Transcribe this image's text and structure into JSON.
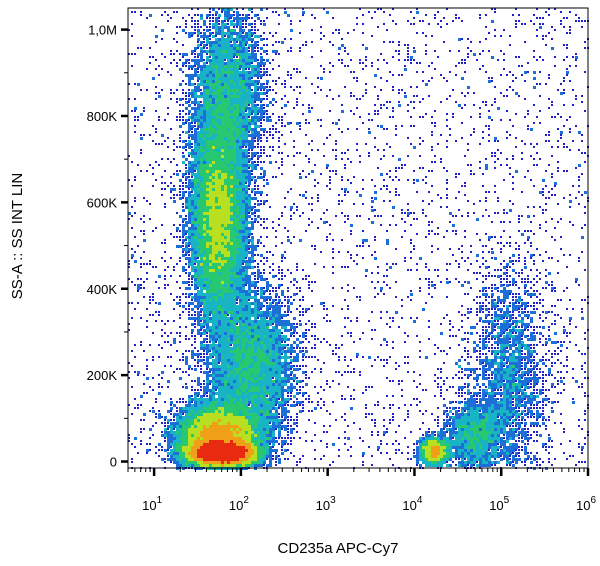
{
  "chart_data": {
    "type": "heatmap",
    "subtype": "flow-cytometry-density-dot-plot",
    "title": "",
    "xlabel": "CD235a APC-Cy7",
    "ylabel": "SS-A :: SS INT LIN",
    "x_scale": "log",
    "y_scale": "linear",
    "xlim": [
      5,
      1000000
    ],
    "ylim": [
      -15000,
      1050000
    ],
    "x_ticks": [
      {
        "value": 10,
        "base": "10",
        "exp": "1"
      },
      {
        "value": 100,
        "base": "10",
        "exp": "2"
      },
      {
        "value": 1000,
        "base": "10",
        "exp": "3"
      },
      {
        "value": 10000,
        "base": "10",
        "exp": "4"
      },
      {
        "value": 100000,
        "base": "10",
        "exp": "5"
      },
      {
        "value": 1000000,
        "base": "10",
        "exp": "6"
      }
    ],
    "y_ticks": [
      {
        "value": 0,
        "label": "0"
      },
      {
        "value": 200000,
        "label": "200K"
      },
      {
        "value": 400000,
        "label": "400K"
      },
      {
        "value": 600000,
        "label": "600K"
      },
      {
        "value": 800000,
        "label": "800K"
      },
      {
        "value": 1000000,
        "label": "1,0M"
      }
    ],
    "grid": false,
    "legend": "none",
    "color_scale": [
      "#1f20c8",
      "#1d6fd8",
      "#18b4c6",
      "#28c870",
      "#b8e020",
      "#f0a018",
      "#e82a10"
    ],
    "populations": [
      {
        "x_center": 60,
        "x_spread_decades": 0.18,
        "y_center": 20000,
        "y_spread": 14000,
        "weight": 0.3
      },
      {
        "x_center": 55,
        "x_spread_decades": 0.22,
        "y_center": 60000,
        "y_spread": 35000,
        "weight": 0.2
      },
      {
        "x_center": 55,
        "x_spread_decades": 0.16,
        "y_center": 560000,
        "y_spread": 120000,
        "weight": 0.22
      },
      {
        "x_center": 70,
        "x_spread_decades": 0.2,
        "y_center": 850000,
        "y_spread": 100000,
        "weight": 0.08
      },
      {
        "x_center": 130,
        "x_spread_decades": 0.25,
        "y_center": 220000,
        "y_spread": 90000,
        "weight": 0.1
      },
      {
        "x_center": 17000,
        "x_spread_decades": 0.08,
        "y_center": 25000,
        "y_spread": 15000,
        "weight": 0.03
      },
      {
        "x_center": 50000,
        "x_spread_decades": 0.18,
        "y_center": 60000,
        "y_spread": 40000,
        "weight": 0.03
      },
      {
        "x_center": 120000,
        "x_spread_decades": 0.22,
        "y_center": 200000,
        "y_spread": 120000,
        "weight": 0.04
      }
    ]
  }
}
